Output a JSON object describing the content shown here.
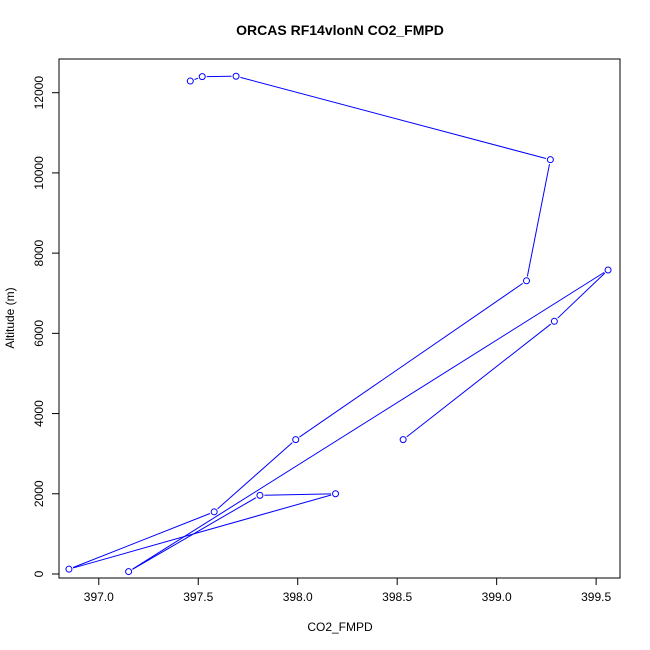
{
  "chart_data": {
    "type": "line",
    "title": "ORCAS RF14vlonN CO2_FMPD",
    "xlabel": "CO2_FMPD",
    "ylabel": "Altitude (m)",
    "xlim": [
      396.8,
      399.62
    ],
    "ylim": [
      -100,
      12840
    ],
    "x_ticks": [
      397.0,
      397.5,
      398.0,
      398.5,
      399.0,
      399.5
    ],
    "x_tick_labels": [
      "397.0",
      "397.5",
      "398.0",
      "398.5",
      "399.0",
      "399.5"
    ],
    "y_ticks": [
      0,
      2000,
      4000,
      6000,
      8000,
      10000,
      12000
    ],
    "y_tick_labels": [
      "0",
      "2000",
      "4000",
      "6000",
      "8000",
      "10000",
      "12000"
    ],
    "grid": false,
    "series_color": "#0000ff",
    "markers": "open-circle",
    "series": [
      {
        "x": [
          397.46,
          397.52,
          397.69,
          399.27,
          399.15,
          397.99,
          397.58,
          396.85,
          398.19,
          397.81,
          397.15,
          399.56,
          399.29,
          398.53
        ],
        "y": [
          12290,
          12400,
          12410,
          10330,
          7310,
          3350,
          1550,
          120,
          2000,
          1960,
          60,
          7580,
          6300,
          3350
        ]
      }
    ]
  }
}
